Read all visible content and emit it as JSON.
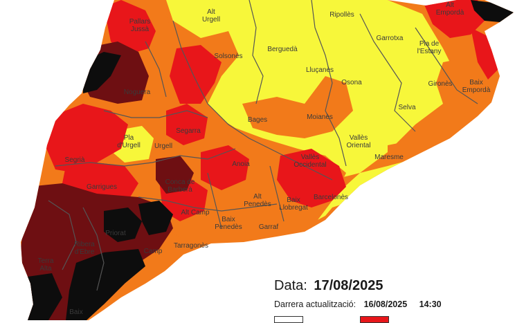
{
  "map": {
    "colors": {
      "sea": "#ffffff",
      "level_very_high": "#0d0d0d",
      "level_high": "#6e0f12",
      "level_moderate": "#e8161a",
      "level_low": "#f27a1a",
      "level_very_low": "#f7f73a",
      "borders": "#555555"
    },
    "comarques": [
      {
        "id": "alt-urgell",
        "label": "Alt\nUrgell"
      },
      {
        "id": "ripolles",
        "label": "Ripollès"
      },
      {
        "id": "alt-emporda",
        "label": "Alt\nEmpordà"
      },
      {
        "id": "pallars-jussa",
        "label": "Pallars\nJussà"
      },
      {
        "id": "bergueda",
        "label": "Berguedà"
      },
      {
        "id": "garrotxa",
        "label": "Garrotxa"
      },
      {
        "id": "pla-estany",
        "label": "Pla de\nl'Estany"
      },
      {
        "id": "solsones",
        "label": "Solsonès"
      },
      {
        "id": "llucanes",
        "label": "Lluçanès"
      },
      {
        "id": "noguera",
        "label": "Noguera"
      },
      {
        "id": "osona",
        "label": "Osona"
      },
      {
        "id": "girones",
        "label": "Gironès"
      },
      {
        "id": "baix-emporda",
        "label": "Baix\nEmpordà"
      },
      {
        "id": "selva",
        "label": "Selva"
      },
      {
        "id": "bages",
        "label": "Bages"
      },
      {
        "id": "moianes",
        "label": "Moianès"
      },
      {
        "id": "pla-urgell",
        "label": "Pla\nd'Urgell"
      },
      {
        "id": "segarra",
        "label": "Segarra"
      },
      {
        "id": "urgell",
        "label": "Urgell"
      },
      {
        "id": "valles-oriental",
        "label": "Vallès\nOriental"
      },
      {
        "id": "segria",
        "label": "Segrià"
      },
      {
        "id": "anoia",
        "label": "Anoia"
      },
      {
        "id": "valles-occidental",
        "label": "Vallès\nOccidental"
      },
      {
        "id": "maresme",
        "label": "Maresme"
      },
      {
        "id": "garrigues",
        "label": "Garrigues"
      },
      {
        "id": "conca-barbera",
        "label": "Conca de\nBarberà"
      },
      {
        "id": "barcelones",
        "label": "Barcelonès"
      },
      {
        "id": "alt-penedes",
        "label": "Alt\nPenedès"
      },
      {
        "id": "baix-llobregat",
        "label": "Baix\nLlobregat"
      },
      {
        "id": "alt-camp",
        "label": "Alt Camp"
      },
      {
        "id": "baix-penedes",
        "label": "Baix\nPenedès"
      },
      {
        "id": "garraf",
        "label": "Garraf"
      },
      {
        "id": "priorat",
        "label": "Priorat"
      },
      {
        "id": "tarragones",
        "label": "Tarragonès"
      },
      {
        "id": "ribera-ebre",
        "label": "Ribera\nd'Ebre"
      },
      {
        "id": "baix-camp",
        "label": "Camp"
      },
      {
        "id": "terra-alta",
        "label": "Terra\nAlta"
      },
      {
        "id": "baix-ebre",
        "label": "Baix"
      }
    ]
  },
  "info": {
    "date_label": "Data:",
    "date_value": "17/08/2025",
    "update_label": "Darrera actualització:",
    "update_date": "16/08/2025",
    "update_time": "14:30"
  },
  "legend": {
    "colors": [
      "#ffffff",
      "#e8161a"
    ]
  }
}
